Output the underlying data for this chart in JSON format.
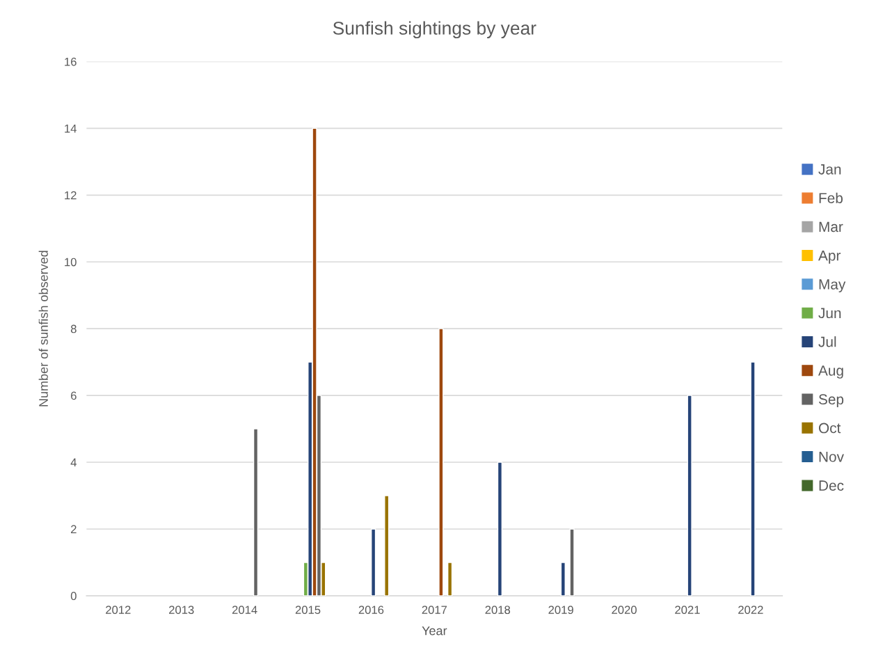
{
  "chart_data": {
    "type": "bar",
    "title": "Sunfish sightings by year",
    "xlabel": "Year",
    "ylabel": "Number of sunfish observed",
    "categories": [
      "2012",
      "2013",
      "2014",
      "2015",
      "2016",
      "2017",
      "2018",
      "2019",
      "2020",
      "2021",
      "2022"
    ],
    "series": [
      {
        "name": "Jan",
        "color": "#4472c4",
        "values": [
          null,
          null,
          null,
          null,
          null,
          null,
          null,
          null,
          null,
          null,
          null
        ]
      },
      {
        "name": "Feb",
        "color": "#ed7d31",
        "values": [
          null,
          null,
          null,
          null,
          null,
          null,
          null,
          null,
          null,
          null,
          null
        ]
      },
      {
        "name": "Mar",
        "color": "#a5a5a5",
        "values": [
          null,
          null,
          null,
          null,
          null,
          null,
          null,
          null,
          null,
          null,
          null
        ]
      },
      {
        "name": "Apr",
        "color": "#ffc000",
        "values": [
          null,
          null,
          null,
          null,
          null,
          null,
          null,
          null,
          null,
          null,
          null
        ]
      },
      {
        "name": "May",
        "color": "#5b9bd5",
        "values": [
          null,
          null,
          null,
          null,
          null,
          null,
          null,
          null,
          null,
          null,
          null
        ]
      },
      {
        "name": "Jun",
        "color": "#70ad47",
        "values": [
          null,
          null,
          null,
          1,
          null,
          null,
          null,
          null,
          null,
          null,
          null
        ]
      },
      {
        "name": "Jul",
        "color": "#264478",
        "values": [
          null,
          null,
          null,
          7,
          2,
          null,
          4,
          1,
          null,
          6,
          7
        ]
      },
      {
        "name": "Aug",
        "color": "#9e480e",
        "values": [
          null,
          null,
          null,
          14,
          null,
          8,
          null,
          null,
          null,
          null,
          null
        ]
      },
      {
        "name": "Sep",
        "color": "#636363",
        "values": [
          null,
          null,
          5,
          6,
          null,
          null,
          null,
          2,
          null,
          null,
          null
        ]
      },
      {
        "name": "Oct",
        "color": "#997300",
        "values": [
          null,
          null,
          null,
          1,
          3,
          1,
          null,
          null,
          null,
          null,
          null
        ]
      },
      {
        "name": "Nov",
        "color": "#255e91",
        "values": [
          null,
          null,
          null,
          null,
          null,
          null,
          null,
          null,
          null,
          null,
          null
        ]
      },
      {
        "name": "Dec",
        "color": "#43682b",
        "values": [
          null,
          null,
          null,
          null,
          null,
          null,
          null,
          null,
          null,
          null,
          null
        ]
      }
    ],
    "ylim": [
      0,
      16
    ],
    "yticks": [
      0,
      2,
      4,
      6,
      8,
      10,
      12,
      14,
      16
    ],
    "grid": "y",
    "legend": "right"
  }
}
